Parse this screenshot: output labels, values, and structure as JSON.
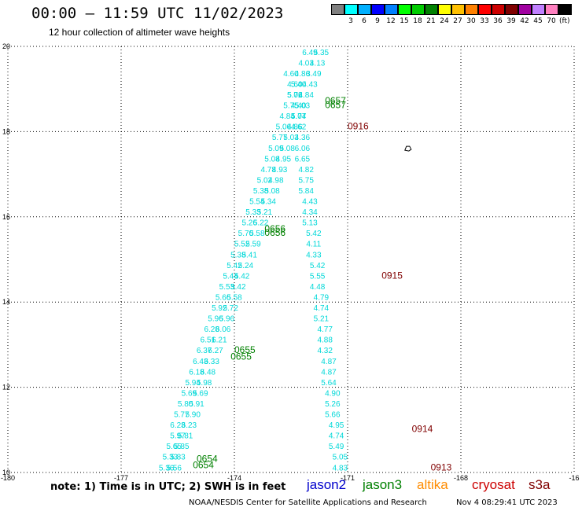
{
  "header": {
    "title": "00:00 — 11:59 UTC 11/02/2023",
    "subtitle": "12 hour collection of altimeter wave heights"
  },
  "legend": {
    "colors": [
      "#808080",
      "#00ffff",
      "#00b0ff",
      "#0000ff",
      "#0080ff",
      "#00ff00",
      "#00cc00",
      "#008000",
      "#ffff00",
      "#ffc000",
      "#ff8000",
      "#ff0000",
      "#cc0000",
      "#800000",
      "#a000a0",
      "#c080ff",
      "#ff80c0",
      "#000000"
    ],
    "labels": [
      "3",
      "6",
      "9",
      "12",
      "15",
      "18",
      "21",
      "24",
      "27",
      "30",
      "33",
      "36",
      "39",
      "42",
      "45",
      "70"
    ],
    "unit": "(ft)"
  },
  "map": {
    "lon_ticks": [
      "-180",
      "-177",
      "-174",
      "-171",
      "-168",
      "-16"
    ],
    "lat_ticks": [
      "20",
      "18",
      "16",
      "14",
      "12",
      "10"
    ],
    "lon_range": [
      -180,
      -165
    ],
    "lat_range": [
      10,
      20
    ],
    "grid": "dotted"
  },
  "chart_data": {
    "type": "scatter",
    "xlim": [
      -180,
      -165
    ],
    "ylim": [
      10,
      20
    ],
    "tracks": [
      {
        "satellite": "jason3",
        "color": "#00d8d8",
        "points": [
          {
            "lon": -171.2,
            "lat": 10.05,
            "swh": "4.83"
          },
          {
            "lon": -171.2,
            "lat": 10.3,
            "swh": "5.05"
          },
          {
            "lon": -171.3,
            "lat": 10.55,
            "swh": "5.49"
          },
          {
            "lon": -171.3,
            "lat": 10.8,
            "swh": "4.74"
          },
          {
            "lon": -171.3,
            "lat": 11.05,
            "swh": "4.95"
          },
          {
            "lon": -171.4,
            "lat": 11.3,
            "swh": "5.66"
          },
          {
            "lon": -171.4,
            "lat": 11.55,
            "swh": "5.26"
          },
          {
            "lon": -171.4,
            "lat": 11.8,
            "swh": "4.90"
          },
          {
            "lon": -171.5,
            "lat": 12.05,
            "swh": "5.64"
          },
          {
            "lon": -171.5,
            "lat": 12.3,
            "swh": "4.87"
          },
          {
            "lon": -171.5,
            "lat": 12.55,
            "swh": "4.87"
          },
          {
            "lon": -171.6,
            "lat": 12.8,
            "swh": "4.32"
          },
          {
            "lon": -171.6,
            "lat": 13.05,
            "swh": "4.88"
          },
          {
            "lon": -171.6,
            "lat": 13.3,
            "swh": "4.77"
          },
          {
            "lon": -171.7,
            "lat": 13.55,
            "swh": "5.21"
          },
          {
            "lon": -171.7,
            "lat": 13.8,
            "swh": "4.74"
          },
          {
            "lon": -171.7,
            "lat": 14.05,
            "swh": "4.79"
          },
          {
            "lon": -171.8,
            "lat": 14.3,
            "swh": "4.48"
          },
          {
            "lon": -171.8,
            "lat": 14.55,
            "swh": "5.55"
          },
          {
            "lon": -171.8,
            "lat": 14.8,
            "swh": "5.42"
          },
          {
            "lon": -171.9,
            "lat": 15.05,
            "swh": "4.33"
          },
          {
            "lon": -171.9,
            "lat": 15.3,
            "swh": "4.11"
          },
          {
            "lon": -171.9,
            "lat": 15.55,
            "swh": "5.42"
          },
          {
            "lon": -172.0,
            "lat": 15.8,
            "swh": "5.13"
          },
          {
            "lon": -172.0,
            "lat": 16.05,
            "swh": "4.34"
          },
          {
            "lon": -172.0,
            "lat": 16.3,
            "swh": "4.43"
          },
          {
            "lon": -172.1,
            "lat": 16.55,
            "swh": "5.84"
          },
          {
            "lon": -172.1,
            "lat": 16.8,
            "swh": "5.75"
          },
          {
            "lon": -172.1,
            "lat": 17.05,
            "swh": "4.82"
          },
          {
            "lon": -172.2,
            "lat": 17.3,
            "swh": "6.65"
          },
          {
            "lon": -172.2,
            "lat": 17.55,
            "swh": "6.06"
          },
          {
            "lon": -172.2,
            "lat": 17.8,
            "swh": "4.36"
          },
          {
            "lon": -172.3,
            "lat": 18.05,
            "swh": "4.62"
          },
          {
            "lon": -172.3,
            "lat": 18.3,
            "swh": "5.74"
          },
          {
            "lon": -172.3,
            "lat": 18.55,
            "swh": "4.40"
          },
          {
            "lon": -172.4,
            "lat": 18.8,
            "swh": "5.06"
          },
          {
            "lon": -172.4,
            "lat": 19.05,
            "swh": "4.60"
          },
          {
            "lon": -172.5,
            "lat": 19.3,
            "swh": "4.60"
          }
        ]
      },
      {
        "satellite": "jason3",
        "color": "#00d8d8",
        "points": [
          {
            "lon": -175.8,
            "lat": 10.05,
            "swh": "5.36"
          },
          {
            "lon": -175.7,
            "lat": 10.3,
            "swh": "5.33"
          },
          {
            "lon": -175.6,
            "lat": 10.55,
            "swh": "5.65"
          },
          {
            "lon": -175.5,
            "lat": 10.8,
            "swh": "5.97"
          },
          {
            "lon": -175.5,
            "lat": 11.05,
            "swh": "6.23"
          },
          {
            "lon": -175.4,
            "lat": 11.3,
            "swh": "5.77"
          },
          {
            "lon": -175.3,
            "lat": 11.55,
            "swh": "5.80"
          },
          {
            "lon": -175.2,
            "lat": 11.8,
            "swh": "5.69"
          },
          {
            "lon": -175.1,
            "lat": 12.05,
            "swh": "5.94"
          },
          {
            "lon": -175.0,
            "lat": 12.3,
            "swh": "6.18"
          },
          {
            "lon": -174.9,
            "lat": 12.55,
            "swh": "6.43"
          },
          {
            "lon": -174.8,
            "lat": 12.8,
            "swh": "6.37"
          },
          {
            "lon": -174.7,
            "lat": 13.05,
            "swh": "6.51"
          },
          {
            "lon": -174.6,
            "lat": 13.3,
            "swh": "6.28"
          },
          {
            "lon": -174.5,
            "lat": 13.55,
            "swh": "5.96"
          },
          {
            "lon": -174.4,
            "lat": 13.8,
            "swh": "5.92"
          },
          {
            "lon": -174.3,
            "lat": 14.05,
            "swh": "5.66"
          },
          {
            "lon": -174.2,
            "lat": 14.3,
            "swh": "5.53"
          },
          {
            "lon": -174.1,
            "lat": 14.55,
            "swh": "5.44"
          },
          {
            "lon": -174.0,
            "lat": 14.8,
            "swh": "5.42"
          },
          {
            "lon": -173.9,
            "lat": 15.05,
            "swh": "5.38"
          },
          {
            "lon": -173.8,
            "lat": 15.3,
            "swh": "5.52"
          },
          {
            "lon": -173.7,
            "lat": 15.55,
            "swh": "5.70"
          },
          {
            "lon": -173.6,
            "lat": 15.8,
            "swh": "5.26"
          },
          {
            "lon": -173.5,
            "lat": 16.05,
            "swh": "5.33"
          },
          {
            "lon": -173.4,
            "lat": 16.3,
            "swh": "5.54"
          },
          {
            "lon": -173.3,
            "lat": 16.55,
            "swh": "5.38"
          },
          {
            "lon": -173.2,
            "lat": 16.8,
            "swh": "5.02"
          },
          {
            "lon": -173.1,
            "lat": 17.05,
            "swh": "4.78"
          },
          {
            "lon": -173.0,
            "lat": 17.3,
            "swh": "5.08"
          },
          {
            "lon": -172.9,
            "lat": 17.55,
            "swh": "5.09"
          },
          {
            "lon": -172.8,
            "lat": 17.8,
            "swh": "5.77"
          },
          {
            "lon": -172.7,
            "lat": 18.05,
            "swh": "5.06"
          },
          {
            "lon": -172.6,
            "lat": 18.3,
            "swh": "4.84"
          },
          {
            "lon": -172.5,
            "lat": 18.55,
            "swh": "5.75"
          },
          {
            "lon": -172.4,
            "lat": 18.8,
            "swh": "5.72"
          },
          {
            "lon": -172.3,
            "lat": 19.05,
            "swh": "5.40"
          },
          {
            "lon": -172.2,
            "lat": 19.3,
            "swh": "4.86"
          },
          {
            "lon": -172.1,
            "lat": 19.55,
            "swh": "4.03"
          },
          {
            "lon": -172.0,
            "lat": 19.8,
            "swh": "6.49"
          }
        ]
      },
      {
        "satellite": "jason3",
        "color": "#00d8d8",
        "points": [
          {
            "lon": -175.6,
            "lat": 10.05,
            "swh": "5.56"
          },
          {
            "lon": -175.5,
            "lat": 10.3,
            "swh": "5.83"
          },
          {
            "lon": -175.4,
            "lat": 10.55,
            "swh": "5.85"
          },
          {
            "lon": -175.3,
            "lat": 10.8,
            "swh": "5.81"
          },
          {
            "lon": -175.2,
            "lat": 11.05,
            "swh": "6.23"
          },
          {
            "lon": -175.1,
            "lat": 11.3,
            "swh": "5.90"
          },
          {
            "lon": -175.0,
            "lat": 11.55,
            "swh": "5.91"
          },
          {
            "lon": -174.9,
            "lat": 11.8,
            "swh": "5.69"
          },
          {
            "lon": -174.8,
            "lat": 12.05,
            "swh": "5.98"
          },
          {
            "lon": -174.7,
            "lat": 12.3,
            "swh": "6.48"
          },
          {
            "lon": -174.6,
            "lat": 12.55,
            "swh": "6.33"
          },
          {
            "lon": -174.5,
            "lat": 12.8,
            "swh": "6.27"
          },
          {
            "lon": -174.4,
            "lat": 13.05,
            "swh": "6.21"
          },
          {
            "lon": -174.3,
            "lat": 13.3,
            "swh": "6.06"
          },
          {
            "lon": -174.2,
            "lat": 13.55,
            "swh": "5.96"
          },
          {
            "lon": -174.1,
            "lat": 13.8,
            "swh": "5.72"
          },
          {
            "lon": -174.0,
            "lat": 14.05,
            "swh": "5.58"
          },
          {
            "lon": -173.9,
            "lat": 14.3,
            "swh": "5.42"
          },
          {
            "lon": -173.8,
            "lat": 14.55,
            "swh": "5.42"
          },
          {
            "lon": -173.7,
            "lat": 14.8,
            "swh": "5.24"
          },
          {
            "lon": -173.6,
            "lat": 15.05,
            "swh": "5.41"
          },
          {
            "lon": -173.5,
            "lat": 15.3,
            "swh": "5.59"
          },
          {
            "lon": -173.4,
            "lat": 15.55,
            "swh": "5.58"
          },
          {
            "lon": -173.3,
            "lat": 15.8,
            "swh": "5.22"
          },
          {
            "lon": -173.2,
            "lat": 16.05,
            "swh": "5.21"
          },
          {
            "lon": -173.1,
            "lat": 16.3,
            "swh": "5.34"
          },
          {
            "lon": -173.0,
            "lat": 16.55,
            "swh": "5.08"
          },
          {
            "lon": -172.9,
            "lat": 16.8,
            "swh": "4.98"
          },
          {
            "lon": -172.8,
            "lat": 17.05,
            "swh": "4.93"
          },
          {
            "lon": -172.7,
            "lat": 17.3,
            "swh": "4.95"
          },
          {
            "lon": -172.6,
            "lat": 17.55,
            "swh": "5.08"
          },
          {
            "lon": -172.5,
            "lat": 17.8,
            "swh": "5.03"
          },
          {
            "lon": -172.4,
            "lat": 18.05,
            "swh": "4.86"
          },
          {
            "lon": -172.3,
            "lat": 18.3,
            "swh": "5.07"
          },
          {
            "lon": -172.2,
            "lat": 18.55,
            "swh": "5.03"
          },
          {
            "lon": -172.1,
            "lat": 18.8,
            "swh": "4.84"
          },
          {
            "lon": -172.0,
            "lat": 19.05,
            "swh": "4.43"
          },
          {
            "lon": -171.9,
            "lat": 19.3,
            "swh": "3.49"
          },
          {
            "lon": -171.8,
            "lat": 19.55,
            "swh": "4.13"
          },
          {
            "lon": -171.7,
            "lat": 19.8,
            "swh": "5.35"
          }
        ]
      }
    ],
    "time_labels": [
      {
        "satellite": "jason3",
        "color": "#008000",
        "lon": -175.1,
        "lat": 10.1,
        "text": "0654"
      },
      {
        "satellite": "jason3",
        "color": "#008000",
        "lon": -175.0,
        "lat": 10.25,
        "text": "0654"
      },
      {
        "satellite": "jason3",
        "color": "#008000",
        "lon": -174.1,
        "lat": 12.65,
        "text": "0655"
      },
      {
        "satellite": "jason3",
        "color": "#008000",
        "lon": -174.0,
        "lat": 12.8,
        "text": "0655"
      },
      {
        "satellite": "jason3",
        "color": "#008000",
        "lon": -173.2,
        "lat": 15.55,
        "text": "0656"
      },
      {
        "satellite": "jason3",
        "color": "#008000",
        "lon": -173.2,
        "lat": 15.65,
        "text": "0656"
      },
      {
        "satellite": "jason3",
        "color": "#008000",
        "lon": -171.6,
        "lat": 18.55,
        "text": "0657"
      },
      {
        "satellite": "jason3",
        "color": "#008000",
        "lon": -171.6,
        "lat": 18.65,
        "text": "0657"
      },
      {
        "satellite": "cryosat",
        "color": "#800000",
        "lon": -171.0,
        "lat": 18.05,
        "text": "0916"
      },
      {
        "satellite": "cryosat",
        "color": "#800000",
        "lon": -170.1,
        "lat": 14.55,
        "text": "0915"
      },
      {
        "satellite": "cryosat",
        "color": "#800000",
        "lon": -169.3,
        "lat": 10.95,
        "text": "0914"
      },
      {
        "satellite": "cryosat",
        "color": "#800000",
        "lon": -168.8,
        "lat": 10.05,
        "text": "0913"
      }
    ],
    "markers": [
      {
        "lon": -169.4,
        "lat": 17.6,
        "kind": "island-outline"
      }
    ]
  },
  "footer": {
    "note": "note:  1) Time is in UTC;  2) SWH is in feet",
    "satellites": [
      {
        "name": "jason2",
        "color": "#0000cc"
      },
      {
        "name": "jason3",
        "color": "#008000"
      },
      {
        "name": "altika",
        "color": "#ff8c00"
      },
      {
        "name": "cryosat",
        "color": "#cc0000"
      },
      {
        "name": "s3a",
        "color": "#800000"
      }
    ],
    "credit": "NOAA/NESDIS Center for Satellite Applications and Research",
    "stamp": "Nov  4 08:29:41 UTC 2023"
  }
}
